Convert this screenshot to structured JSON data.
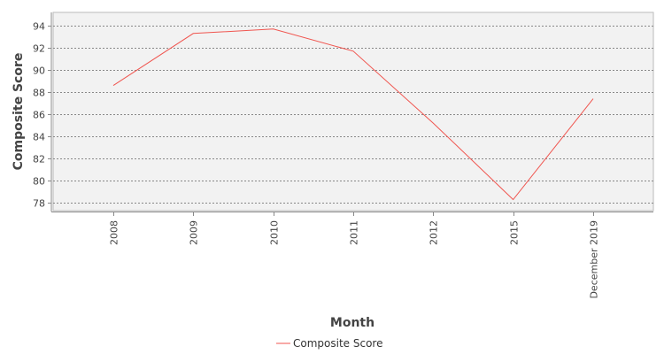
{
  "chart_data": {
    "type": "line",
    "categories": [
      "2008",
      "2009",
      "2010",
      "2011",
      "2012",
      "2015",
      "December 2019"
    ],
    "series": [
      {
        "name": "Composite Score",
        "values": [
          88.6,
          93.3,
          93.7,
          91.7,
          85.2,
          78.3,
          87.4
        ],
        "color": "#f0554f"
      }
    ],
    "xlabel": "Month",
    "ylabel": "Composite Score",
    "ylim": [
      77.3,
      95.2
    ],
    "yticks": [
      78,
      80,
      82,
      84,
      86,
      88,
      90,
      92,
      94
    ],
    "grid": true,
    "legend_position": "bottom-center",
    "plot_background": "#f2f2f2",
    "grid_color": "#888888"
  }
}
